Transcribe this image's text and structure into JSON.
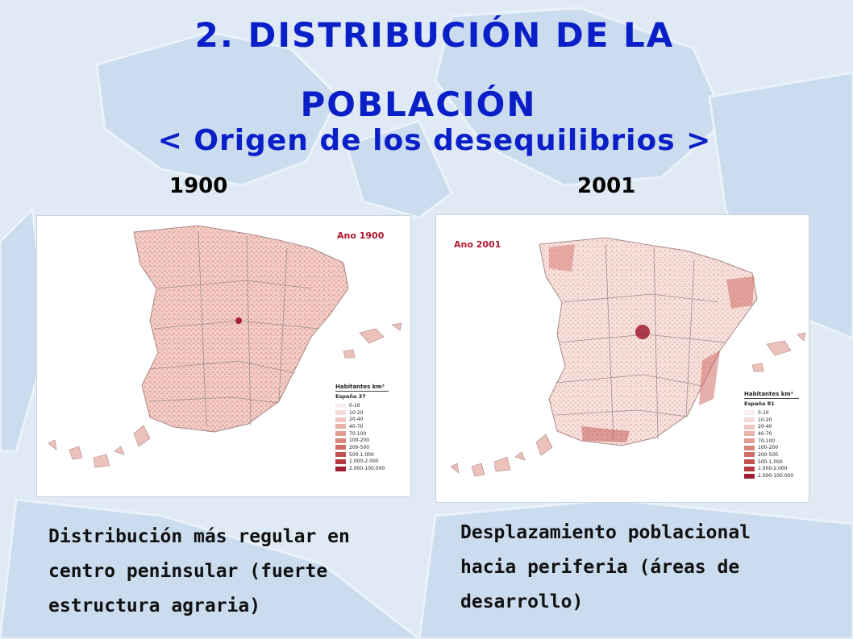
{
  "slide": {
    "title_line1": "2.  DISTRIBUCIÓN DE LA",
    "title_line2": "POBLACIÓN",
    "subtitle": "< Origen de los desequilibrios >",
    "title_color": "#0a1fc8"
  },
  "left": {
    "year": "1900",
    "map_label": "Ano 1900",
    "legend_title": "Habitantes km²",
    "legend_sub": "España 37",
    "caption_lines": [
      "Distribución más regular en",
      "centro peninsular (fuerte",
      "estructura agraria)"
    ]
  },
  "right": {
    "year": "2001",
    "map_label": "Ano 2001",
    "legend_title": "Habitantes km²",
    "legend_sub": "España 81",
    "caption_lines": [
      "Desplazamiento poblacional",
      "hacia periferia (áreas de",
      "desarrollo)"
    ]
  },
  "legend_classes": [
    {
      "label": "0-10",
      "color": "#fbeeee"
    },
    {
      "label": "10-20",
      "color": "#f6dcd8"
    },
    {
      "label": "20-40",
      "color": "#f0c8c2"
    },
    {
      "label": "40-70",
      "color": "#e9b2aa"
    },
    {
      "label": "70-100",
      "color": "#e29c93"
    },
    {
      "label": "100-200",
      "color": "#d9867c"
    },
    {
      "label": "200-500",
      "color": "#cf6d66"
    },
    {
      "label": "500-1.000",
      "color": "#c2524f"
    },
    {
      "label": "1.000-2.000",
      "color": "#b43a40"
    },
    {
      "label": "2.000-100.000",
      "color": "#a01f33"
    }
  ]
}
